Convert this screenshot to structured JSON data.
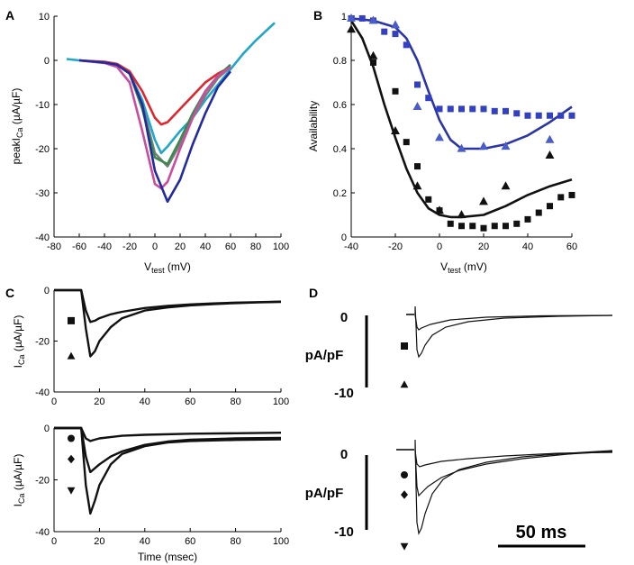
{
  "chart_data": [
    {
      "panel": "A",
      "type": "line",
      "ylabel_main": "peakI",
      "ylabel_sub": "Ca",
      "ylabel_unit": " (µA/µF)",
      "xlabel_main": "V",
      "xlabel_sub": "test",
      "xlabel_unit": " (mV)",
      "xlim": [
        -80,
        100
      ],
      "ylim": [
        -40,
        10
      ],
      "xticks": [
        -80,
        -60,
        -40,
        -20,
        0,
        20,
        40,
        60,
        80,
        100
      ],
      "yticks": [
        10,
        0,
        -10,
        -20,
        -30,
        -40
      ],
      "series": [
        {
          "name": "cyan",
          "color": "#1fa6c9",
          "x": [
            -70,
            -60,
            -40,
            -30,
            -20,
            -10,
            0,
            5,
            10,
            20,
            30,
            40,
            50,
            60,
            70,
            80,
            95
          ],
          "y": [
            0.3,
            0,
            -0.5,
            -1,
            -3,
            -9,
            -18,
            -21,
            -19.5,
            -16,
            -13,
            -9,
            -5.5,
            -2,
            1.5,
            4.5,
            8.5
          ]
        },
        {
          "name": "red",
          "color": "#e0262d",
          "x": [
            -60,
            -40,
            -30,
            -20,
            -10,
            0,
            5,
            10,
            20,
            30,
            40,
            50,
            60
          ],
          "y": [
            0,
            -0.3,
            -0.8,
            -2.5,
            -7,
            -13,
            -14.5,
            -14,
            -11,
            -8,
            -5,
            -3,
            -1.5
          ]
        },
        {
          "name": "gray",
          "color": "#7c7c7c",
          "x": [
            -60,
            -40,
            -30,
            -20,
            -10,
            0,
            10,
            20,
            30,
            40,
            50,
            60
          ],
          "y": [
            0,
            -0.5,
            -1,
            -3,
            -10,
            -21,
            -24,
            -19,
            -13,
            -8,
            -4,
            -1.5
          ]
        },
        {
          "name": "green",
          "color": "#3a8a4e",
          "x": [
            -60,
            -40,
            -30,
            -20,
            -10,
            0,
            10,
            20,
            30,
            40,
            50,
            60
          ],
          "y": [
            0,
            -0.5,
            -1,
            -3,
            -11,
            -22,
            -23.5,
            -18,
            -12,
            -7,
            -3.5,
            -1
          ]
        },
        {
          "name": "magenta",
          "color": "#c84d9e",
          "x": [
            -60,
            -40,
            -30,
            -20,
            -10,
            0,
            5,
            10,
            20,
            30,
            40,
            50,
            60
          ],
          "y": [
            0,
            -0.6,
            -1.5,
            -5,
            -16,
            -28,
            -29,
            -27.5,
            -20,
            -13,
            -7,
            -3.5,
            -1.5
          ]
        },
        {
          "name": "navy",
          "color": "#232aa0",
          "x": [
            -60,
            -40,
            -30,
            -20,
            -10,
            0,
            10,
            20,
            30,
            40,
            50,
            60
          ],
          "y": [
            0,
            -0.5,
            -1,
            -3,
            -10,
            -25,
            -32,
            -27,
            -19,
            -12,
            -6,
            -2.5
          ]
        }
      ]
    },
    {
      "panel": "B",
      "type": "scatter",
      "ylabel": "Availability",
      "xlabel_main": "V",
      "xlabel_sub": "test",
      "xlabel_unit": " (mV)",
      "xlim": [
        -40,
        60
      ],
      "ylim": [
        0,
        1
      ],
      "xticks": [
        -40,
        -20,
        0,
        20,
        40,
        60
      ],
      "yticks": [
        1,
        0.8,
        0.6,
        0.4,
        0.2,
        0
      ],
      "series": [
        {
          "name": "blue fit",
          "kind": "line",
          "color": "#2b35a8",
          "x": [
            -40,
            -30,
            -20,
            -15,
            -10,
            -5,
            0,
            5,
            10,
            20,
            30,
            40,
            50,
            60
          ],
          "y": [
            0.99,
            0.98,
            0.95,
            0.9,
            0.8,
            0.66,
            0.53,
            0.44,
            0.4,
            0.4,
            0.42,
            0.46,
            0.52,
            0.59
          ]
        },
        {
          "name": "black fit",
          "kind": "line",
          "color": "#111111",
          "x": [
            -40,
            -35,
            -30,
            -25,
            -20,
            -15,
            -10,
            -5,
            0,
            5,
            10,
            20,
            30,
            40,
            50,
            60
          ],
          "y": [
            0.98,
            0.9,
            0.77,
            0.6,
            0.45,
            0.31,
            0.2,
            0.13,
            0.1,
            0.09,
            0.09,
            0.1,
            0.14,
            0.19,
            0.23,
            0.26
          ]
        },
        {
          "name": "blue squares",
          "kind": "square",
          "color": "#3340c0",
          "x": [
            -40,
            -35,
            -30,
            -25,
            -20,
            -15,
            -10,
            -5,
            0,
            5,
            10,
            15,
            20,
            25,
            30,
            35,
            40,
            45,
            50,
            55,
            60
          ],
          "y": [
            0.99,
            0.99,
            0.98,
            0.93,
            0.92,
            0.87,
            0.69,
            0.63,
            0.58,
            0.58,
            0.58,
            0.58,
            0.58,
            0.57,
            0.57,
            0.56,
            0.55,
            0.55,
            0.55,
            0.55,
            0.55
          ]
        },
        {
          "name": "blue triangles",
          "kind": "triangle-up",
          "color": "#4a5cc8",
          "x": [
            -40,
            -30,
            -20,
            -10,
            0,
            10,
            20,
            30,
            50
          ],
          "y": [
            0.99,
            0.98,
            0.96,
            0.59,
            0.45,
            0.4,
            0.41,
            0.41,
            0.44
          ]
        },
        {
          "name": "black squares",
          "kind": "square",
          "color": "#111111",
          "x": [
            -30,
            -20,
            -15,
            -10,
            -5,
            0,
            5,
            10,
            15,
            20,
            25,
            30,
            35,
            40,
            45,
            50,
            55,
            60
          ],
          "y": [
            0.79,
            0.66,
            0.43,
            0.32,
            0.17,
            0.12,
            0.06,
            0.05,
            0.05,
            0.04,
            0.05,
            0.05,
            0.06,
            0.08,
            0.11,
            0.14,
            0.18,
            0.19
          ]
        },
        {
          "name": "black triangles",
          "kind": "triangle-up",
          "color": "#111111",
          "x": [
            -40,
            -30,
            -20,
            -10,
            0,
            10,
            20,
            30,
            50
          ],
          "y": [
            0.94,
            0.82,
            0.48,
            0.23,
            0.12,
            0.1,
            0.16,
            0.23,
            0.37
          ]
        }
      ]
    },
    {
      "panel": "C-top",
      "type": "line",
      "ylabel_main": "I",
      "ylabel_sub": "Ca",
      "ylabel_unit": " (µA/µF)",
      "xlim": [
        0,
        100
      ],
      "ylim": [
        -40,
        0
      ],
      "xticks": [
        0,
        20,
        40,
        60,
        80,
        100
      ],
      "yticks": [
        0,
        -20,
        -40
      ],
      "markers": [
        {
          "kind": "square",
          "y": -12
        },
        {
          "kind": "triangle-up",
          "y": -26
        }
      ],
      "series": [
        {
          "name": "square trace",
          "color": "#111111",
          "x": [
            0,
            12,
            14,
            16,
            18,
            20,
            25,
            30,
            40,
            50,
            60,
            70,
            80,
            90,
            100
          ],
          "y": [
            0,
            0,
            -8,
            -12.5,
            -12,
            -11,
            -9.5,
            -8.5,
            -7,
            -6.2,
            -5.6,
            -5.2,
            -4.9,
            -4.7,
            -4.5
          ]
        },
        {
          "name": "triangle trace",
          "color": "#111111",
          "x": [
            0,
            12,
            14,
            16,
            18,
            20,
            25,
            30,
            40,
            50,
            60,
            70,
            80,
            90,
            100
          ],
          "y": [
            0,
            0,
            -15,
            -26,
            -24,
            -20,
            -14.5,
            -11,
            -8,
            -6.8,
            -6,
            -5.5,
            -5.1,
            -4.8,
            -4.6
          ]
        }
      ]
    },
    {
      "panel": "C-bottom",
      "type": "line",
      "ylabel_main": "I",
      "ylabel_sub": "Ca",
      "ylabel_unit": " (µA/µF)",
      "xlabel": "Time (msec)",
      "xlim": [
        0,
        100
      ],
      "ylim": [
        -40,
        0
      ],
      "xticks": [
        0,
        20,
        40,
        60,
        80,
        100
      ],
      "yticks": [
        0,
        -20,
        -40
      ],
      "markers": [
        {
          "kind": "circle",
          "y": -4
        },
        {
          "kind": "diamond",
          "y": -12
        },
        {
          "kind": "triangle-down",
          "y": -24
        }
      ],
      "series": [
        {
          "name": "circle trace",
          "color": "#111111",
          "x": [
            0,
            12,
            14,
            16,
            18,
            20,
            30,
            40,
            60,
            80,
            100
          ],
          "y": [
            0,
            0,
            -4,
            -5,
            -4.5,
            -4,
            -3,
            -2.6,
            -2.2,
            -2,
            -1.8
          ]
        },
        {
          "name": "diamond trace",
          "color": "#111111",
          "x": [
            0,
            12,
            14,
            16,
            18,
            20,
            25,
            30,
            40,
            50,
            60,
            80,
            100
          ],
          "y": [
            0,
            0,
            -11,
            -17,
            -15.5,
            -14,
            -11,
            -9,
            -6.5,
            -5.2,
            -4.5,
            -4,
            -3.8
          ]
        },
        {
          "name": "triangle-down trace",
          "color": "#111111",
          "x": [
            0,
            12,
            14,
            16,
            18,
            20,
            25,
            30,
            40,
            50,
            60,
            80,
            100
          ],
          "y": [
            0,
            0,
            -22,
            -33,
            -28,
            -22,
            -14,
            -10,
            -7,
            -5.6,
            -5,
            -4.6,
            -4.4
          ]
        }
      ]
    },
    {
      "panel": "D",
      "type": "line",
      "ylabel": "pA/pF",
      "y_top_label": "0",
      "y_bottom_label": "-10",
      "scale_bar_label": "50 ms",
      "upper_markers": [
        {
          "kind": "square"
        },
        {
          "kind": "triangle-up"
        }
      ],
      "lower_markers": [
        {
          "kind": "circle"
        },
        {
          "kind": "diamond"
        },
        {
          "kind": "triangle-down"
        }
      ]
    }
  ]
}
